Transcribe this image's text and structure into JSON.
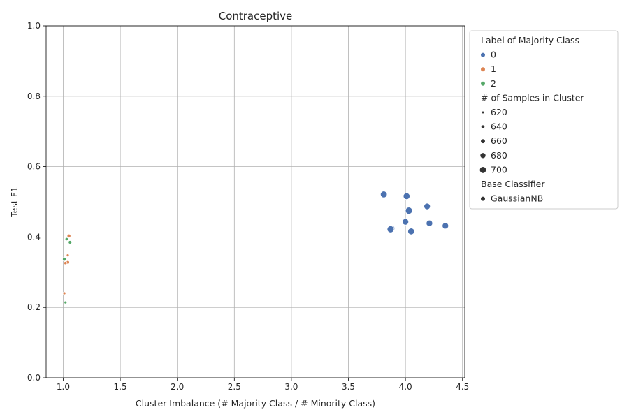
{
  "chart_data": {
    "type": "scatter",
    "title": "Contraceptive",
    "xlabel": "Cluster Imbalance (# Majority Class / # Minority Class)",
    "ylabel": "Test F1",
    "xlim": [
      0.85,
      4.52
    ],
    "ylim": [
      0.0,
      1.0
    ],
    "xticks": [
      "1.0",
      "1.5",
      "2.0",
      "2.5",
      "3.0",
      "3.5",
      "4.0",
      "4.5"
    ],
    "yticks": [
      "0.0",
      "0.2",
      "0.4",
      "0.6",
      "0.8",
      "1.0"
    ],
    "grid": true,
    "legend_placement": "outside right, top",
    "legend": {
      "hue_title": "Label of Majority Class",
      "hue_items": [
        {
          "label": "0",
          "color": "#4c72b0"
        },
        {
          "label": "1",
          "color": "#dd8452"
        },
        {
          "label": "2",
          "color": "#55a868"
        }
      ],
      "size_title": "# of Samples in Cluster",
      "size_items": [
        {
          "label": "620",
          "value": 620
        },
        {
          "label": "640",
          "value": 640
        },
        {
          "label": "660",
          "value": 660
        },
        {
          "label": "680",
          "value": 680
        },
        {
          "label": "700",
          "value": 700
        }
      ],
      "style_title": "Base Classifier",
      "style_items": [
        {
          "label": "GaussianNB"
        }
      ]
    },
    "series": [
      {
        "name": "0",
        "color": "#4c72b0",
        "points": [
          {
            "x": 3.81,
            "y": 0.521,
            "n": 690
          },
          {
            "x": 4.01,
            "y": 0.516,
            "n": 690
          },
          {
            "x": 4.19,
            "y": 0.487,
            "n": 685
          },
          {
            "x": 4.03,
            "y": 0.475,
            "n": 695
          },
          {
            "x": 4.0,
            "y": 0.443,
            "n": 685
          },
          {
            "x": 4.21,
            "y": 0.439,
            "n": 685
          },
          {
            "x": 4.35,
            "y": 0.432,
            "n": 685
          },
          {
            "x": 3.88,
            "y": 0.424,
            "n": 680
          },
          {
            "x": 3.87,
            "y": 0.422,
            "n": 695
          },
          {
            "x": 4.05,
            "y": 0.416,
            "n": 690
          }
        ]
      },
      {
        "name": "1",
        "color": "#dd8452",
        "points": [
          {
            "x": 1.05,
            "y": 0.403,
            "n": 640
          },
          {
            "x": 1.04,
            "y": 0.348,
            "n": 625
          },
          {
            "x": 1.04,
            "y": 0.328,
            "n": 635
          },
          {
            "x": 1.02,
            "y": 0.326,
            "n": 630
          },
          {
            "x": 1.01,
            "y": 0.24,
            "n": 625
          }
        ]
      },
      {
        "name": "2",
        "color": "#55a868",
        "points": [
          {
            "x": 1.03,
            "y": 0.394,
            "n": 630
          },
          {
            "x": 1.06,
            "y": 0.385,
            "n": 635
          },
          {
            "x": 1.01,
            "y": 0.337,
            "n": 640
          },
          {
            "x": 1.02,
            "y": 0.214,
            "n": 625
          }
        ]
      }
    ]
  }
}
